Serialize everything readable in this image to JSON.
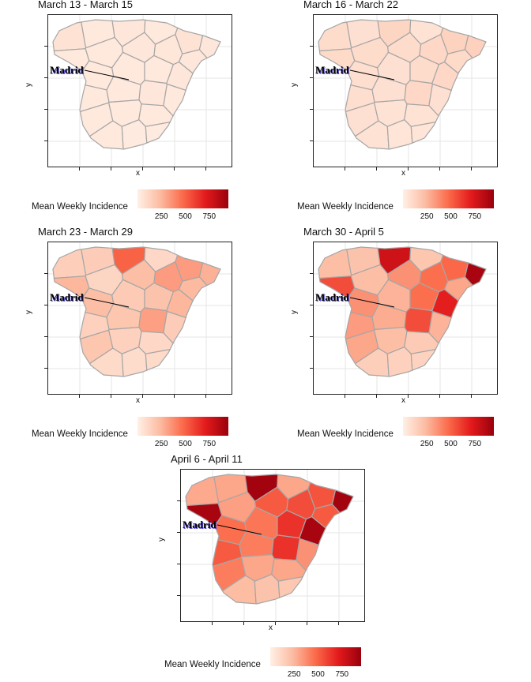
{
  "colors": {
    "region_stroke": "#a6a6a6",
    "grid": "#e6e6e6",
    "madrid_line": "#000000",
    "scale": [
      "#fff0e6",
      "#fcbba1",
      "#fb6a4a",
      "#e31a1c",
      "#99000d"
    ]
  },
  "axis": {
    "x_label": "x",
    "y_label": "y"
  },
  "annotation": {
    "city": "Madrid"
  },
  "legend": {
    "title": "Mean Weekly Incidence",
    "ticks": [
      "250",
      "500",
      "750"
    ],
    "range": [
      0,
      950
    ]
  },
  "panels": [
    {
      "title": "March 13 - March 15",
      "values": [
        60,
        30,
        40,
        35,
        60,
        40,
        30,
        35,
        40,
        45,
        40,
        30,
        30,
        35,
        40,
        30,
        30,
        40,
        30,
        30,
        30,
        30,
        30,
        25,
        25
      ]
    },
    {
      "title": "March 16 - March 22",
      "values": [
        90,
        70,
        120,
        60,
        130,
        140,
        100,
        90,
        90,
        110,
        100,
        80,
        70,
        90,
        110,
        80,
        70,
        110,
        70,
        70,
        60,
        60,
        60,
        50,
        50
      ]
    },
    {
      "title": "March 23 - March 29",
      "values": [
        150,
        160,
        500,
        110,
        330,
        270,
        250,
        120,
        220,
        330,
        240,
        220,
        170,
        200,
        250,
        140,
        190,
        320,
        160,
        190,
        140,
        110,
        100,
        90,
        100
      ]
    },
    {
      "title": "March 30 - April 5",
      "values": [
        220,
        200,
        780,
        190,
        480,
        900,
        560,
        220,
        360,
        460,
        300,
        360,
        260,
        460,
        700,
        330,
        280,
        560,
        260,
        300,
        220,
        170,
        150,
        140,
        130
      ]
    },
    {
      "title": "April 6 - April 11",
      "values": [
        290,
        300,
        920,
        300,
        540,
        920,
        900,
        320,
        520,
        560,
        520,
        460,
        440,
        640,
        900,
        520,
        420,
        640,
        360,
        420,
        300,
        300,
        230,
        200,
        180
      ]
    }
  ]
}
